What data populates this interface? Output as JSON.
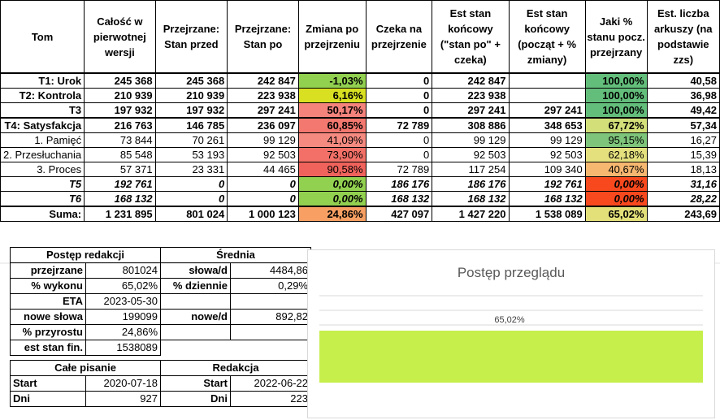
{
  "header": {
    "tom": "Tom",
    "calosc": "Całość w pierwotnej wersji",
    "stan_przed": "Przejrzane: Stan przed",
    "stan_po": "Przejrzane: Stan po",
    "zmiana": "Zmiana po przejrzeniu",
    "czeka": "Czeka na przejrzenie",
    "est_po": "Est stan końcowy (\"stan po\" + czeka)",
    "est_pocz": "Est stan końcowy (począt + % zmiany)",
    "jaki": "Jaki % stanu pocz. przejrzany",
    "arkusze": "Est. liczba arkuszy (na podstawie zzs)"
  },
  "rows": [
    {
      "tom": "T1: Urok",
      "calosc": "245 368",
      "przed": "245 368",
      "po": "242 847",
      "zmiana": "-1,03%",
      "czeka": "0",
      "est_po": "242 847",
      "est_pocz": "",
      "jaki": "100,00%",
      "ark": "40,58",
      "style": "bold",
      "zc": "#92d050",
      "jc": "#63be7b"
    },
    {
      "tom": "T2: Kontrola",
      "calosc": "210 939",
      "przed": "210 939",
      "po": "223 938",
      "zmiana": "6,16%",
      "czeka": "0",
      "est_po": "223 938",
      "est_pocz": "",
      "jaki": "100,00%",
      "ark": "36,98",
      "style": "bold",
      "zc": "#d9e021",
      "jc": "#63be7b"
    },
    {
      "tom": "T3",
      "calosc": "197 932",
      "przed": "197 932",
      "po": "297 241",
      "zmiana": "50,17%",
      "czeka": "0",
      "est_po": "297 241",
      "est_pocz": "297 241",
      "jaki": "100,00%",
      "ark": "49,42",
      "style": "bold",
      "zc": "#f4837c",
      "jc": "#63be7b"
    },
    {
      "tom": "T4: Satysfakcja",
      "calosc": "216 763",
      "przed": "146 785",
      "po": "236 097",
      "zmiana": "60,85%",
      "czeka": "72 789",
      "est_po": "308 886",
      "est_pocz": "348 653",
      "jaki": "67,72%",
      "ark": "57,34",
      "style": "bold",
      "zc": "#f3786f",
      "jc": "#d3e07a"
    },
    {
      "tom": "1. Pamięć",
      "calosc": "73 844",
      "przed": "70 261",
      "po": "99 129",
      "zmiana": "41,09%",
      "czeka": "0",
      "est_po": "99 129",
      "est_pocz": "99 129",
      "jaki": "95,15%",
      "ark": "16,27",
      "style": "",
      "zc": "#f58a80",
      "jc": "#7ec47a"
    },
    {
      "tom": "2. Przesłuchania",
      "calosc": "85 548",
      "przed": "53 193",
      "po": "92 503",
      "zmiana": "73,90%",
      "czeka": "0",
      "est_po": "92 503",
      "est_pocz": "92 503",
      "jaki": "62,18%",
      "ark": "15,39",
      "style": "",
      "zc": "#f27067",
      "jc": "#e4e07e"
    },
    {
      "tom": "3. Proces",
      "calosc": "57 371",
      "przed": "23 331",
      "po": "44 465",
      "zmiana": "90,58%",
      "czeka": "72 789",
      "est_po": "117 254",
      "est_pocz": "109 340",
      "jaki": "40,67%",
      "ark": "18,13",
      "style": "",
      "zc": "#f0635c",
      "jc": "#f6b770"
    },
    {
      "tom": "T5",
      "calosc": "192 761",
      "przed": "0",
      "po": "0",
      "zmiana": "0,00%",
      "czeka": "186 176",
      "est_po": "186 176",
      "est_pocz": "192 761",
      "jaki": "0,00%",
      "ark": "31,16",
      "style": "bi",
      "zc": "#92d050",
      "jc": "#f8481e"
    },
    {
      "tom": "T6",
      "calosc": "168 132",
      "przed": "0",
      "po": "0",
      "zmiana": "0,00%",
      "czeka": "168 132",
      "est_po": "168 132",
      "est_pocz": "168 132",
      "jaki": "0,00%",
      "ark": "28,22",
      "style": "bi",
      "zc": "#92d050",
      "jc": "#f8481e"
    },
    {
      "tom": "Suma:",
      "calosc": "1 231 895",
      "przed": "801 024",
      "po": "1 000 123",
      "zmiana": "24,86%",
      "czeka": "427 097",
      "est_po": "1 427 220",
      "est_pocz": "1 538 089",
      "jaki": "65,02%",
      "ark": "243,69",
      "style": "bold",
      "zc": "#f8a063",
      "jc": "#e3e07a"
    }
  ],
  "progress": {
    "title": "Postęp redakcji",
    "przejrzane_l": "przejrzane",
    "przejrzane_v": "801024",
    "wykonu_l": "% wykonu",
    "wykonu_v": "65,02%",
    "eta_l": "ETA",
    "eta_v": "2023-05-30",
    "nowe_l": "nowe słowa",
    "nowe_v": "199099",
    "przyrost_l": "% przyrostu",
    "przyrost_v": "24,86%",
    "est_l": "est stan fin.",
    "est_v": "1538089"
  },
  "srednia": {
    "title": "Średnia",
    "slowa_l": "słowa/d",
    "slowa_v": "4484,86",
    "dzien_l": "% dziennie",
    "dzien_v": "0,29%",
    "nowe_l": "nowe/d",
    "nowe_v": "892,82"
  },
  "pisanie": {
    "title": "Całe pisanie",
    "start_l": "Start",
    "start_v": "2020-07-18",
    "dni_l": "Dni",
    "dni_v": "927"
  },
  "redakcja": {
    "title": "Redakcja",
    "start_l": "Start",
    "start_v": "2022-06-22",
    "dni_l": "Dni",
    "dni_v": "223"
  },
  "chart_data": {
    "type": "bar",
    "title": "Postęp przeglądu",
    "categories": [
      ""
    ],
    "values": [
      65.02
    ],
    "data_labels": [
      "65,02%"
    ],
    "bar_color": "#c6ef4c",
    "ylim": [
      0,
      100
    ]
  }
}
